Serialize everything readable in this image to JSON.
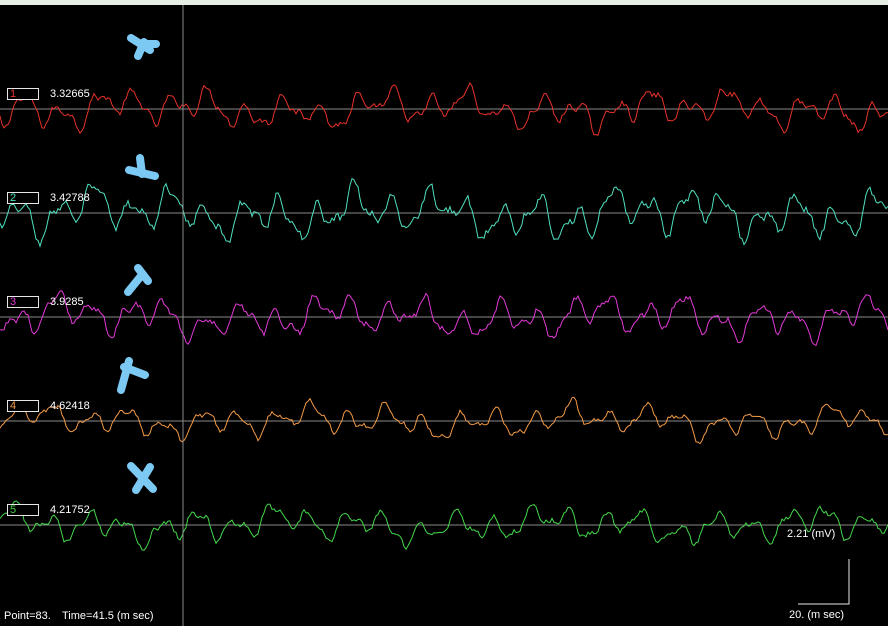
{
  "status": {
    "point_label": "Point=83.",
    "time_label": "Time=41.5 (m sec)"
  },
  "scale": {
    "voltage_label": "2.21 (mV)",
    "time_label": "20. (m sec)"
  },
  "chart_data": {
    "type": "line",
    "cursor_point": 83,
    "cursor_time_ms": 41.5,
    "series": [
      {
        "name": "1",
        "value": "3.32665",
        "color": "#e8322a"
      },
      {
        "name": "2",
        "value": "3.42788",
        "color": "#4fe0c0"
      },
      {
        "name": "3",
        "value": "3.9285",
        "color": "#e33ad8"
      },
      {
        "name": "4",
        "value": "4.62418",
        "color": "#f39a45"
      },
      {
        "name": "5",
        "value": "4.21752",
        "color": "#43d84a"
      }
    ]
  },
  "markers": [
    {
      "name": "marker-1",
      "color": "#7cc9f4"
    },
    {
      "name": "marker-2",
      "color": "#7cc9f4"
    },
    {
      "name": "marker-3",
      "color": "#7cc9f4"
    },
    {
      "name": "marker-4",
      "color": "#7cc9f4"
    },
    {
      "name": "marker-5",
      "color": "#7cc9f4"
    }
  ]
}
